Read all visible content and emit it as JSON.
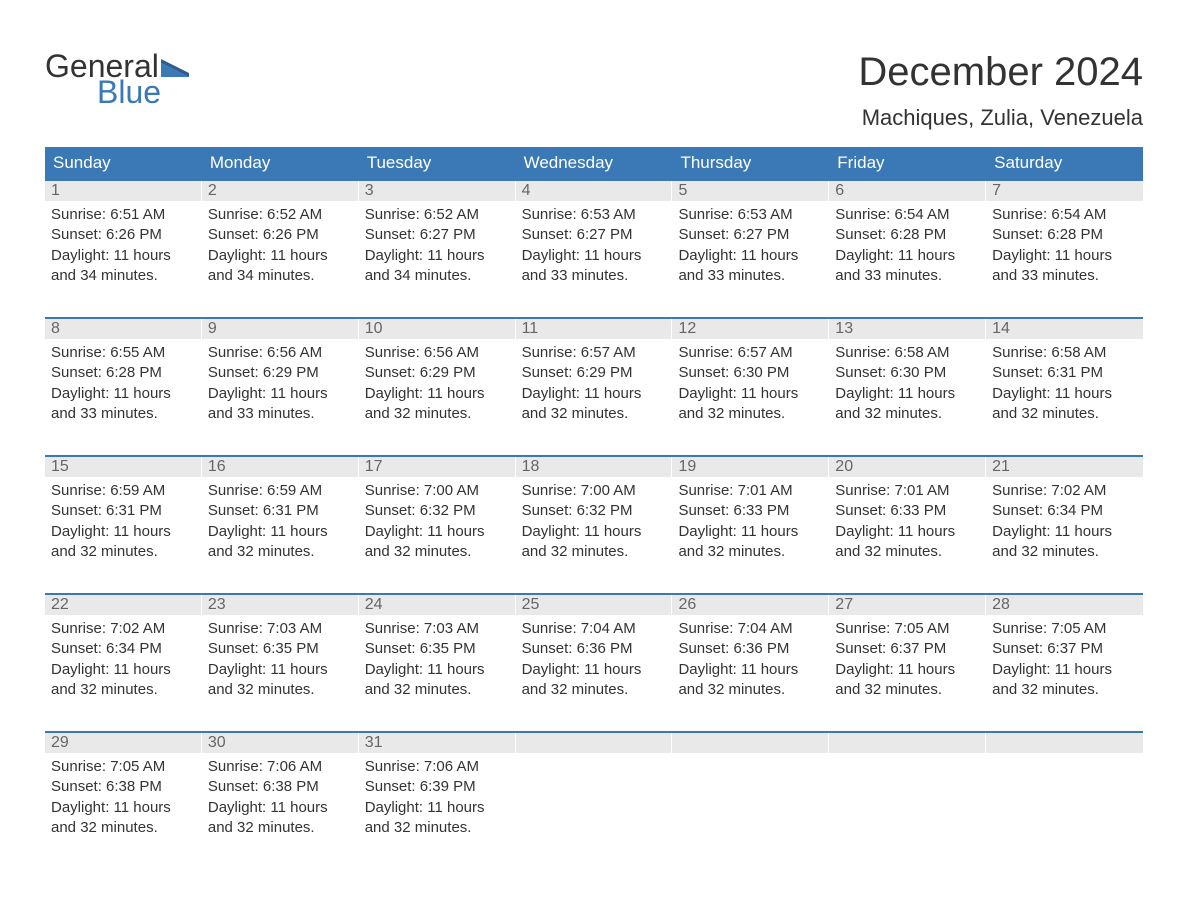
{
  "logo": {
    "general": "General",
    "blue": "Blue"
  },
  "title": "December 2024",
  "location": "Machiques, Zulia, Venezuela",
  "dayHeaders": [
    "Sunday",
    "Monday",
    "Tuesday",
    "Wednesday",
    "Thursday",
    "Friday",
    "Saturday"
  ],
  "labels": {
    "sunrise": "Sunrise:",
    "sunset": "Sunset:",
    "daylightPrefix": "Daylight:"
  },
  "colors": {
    "headerBg": "#3a78b6",
    "headerText": "#ffffff",
    "stripBg": "#e9e9e9",
    "dayNumText": "#666666",
    "bodyText": "#333333",
    "logoBlue": "#3a78b6",
    "background": "#ffffff",
    "weekBorder": "#3a78b6"
  },
  "typography": {
    "titleSize": 40,
    "locationSize": 22,
    "dayHeadSize": 17,
    "cellFontSize": 15,
    "logoFontSize": 32
  },
  "weeks": [
    [
      {
        "n": "1",
        "sr": "6:51 AM",
        "ss": "6:26 PM",
        "dl": "11 hours and 34 minutes."
      },
      {
        "n": "2",
        "sr": "6:52 AM",
        "ss": "6:26 PM",
        "dl": "11 hours and 34 minutes."
      },
      {
        "n": "3",
        "sr": "6:52 AM",
        "ss": "6:27 PM",
        "dl": "11 hours and 34 minutes."
      },
      {
        "n": "4",
        "sr": "6:53 AM",
        "ss": "6:27 PM",
        "dl": "11 hours and 33 minutes."
      },
      {
        "n": "5",
        "sr": "6:53 AM",
        "ss": "6:27 PM",
        "dl": "11 hours and 33 minutes."
      },
      {
        "n": "6",
        "sr": "6:54 AM",
        "ss": "6:28 PM",
        "dl": "11 hours and 33 minutes."
      },
      {
        "n": "7",
        "sr": "6:54 AM",
        "ss": "6:28 PM",
        "dl": "11 hours and 33 minutes."
      }
    ],
    [
      {
        "n": "8",
        "sr": "6:55 AM",
        "ss": "6:28 PM",
        "dl": "11 hours and 33 minutes."
      },
      {
        "n": "9",
        "sr": "6:56 AM",
        "ss": "6:29 PM",
        "dl": "11 hours and 33 minutes."
      },
      {
        "n": "10",
        "sr": "6:56 AM",
        "ss": "6:29 PM",
        "dl": "11 hours and 32 minutes."
      },
      {
        "n": "11",
        "sr": "6:57 AM",
        "ss": "6:29 PM",
        "dl": "11 hours and 32 minutes."
      },
      {
        "n": "12",
        "sr": "6:57 AM",
        "ss": "6:30 PM",
        "dl": "11 hours and 32 minutes."
      },
      {
        "n": "13",
        "sr": "6:58 AM",
        "ss": "6:30 PM",
        "dl": "11 hours and 32 minutes."
      },
      {
        "n": "14",
        "sr": "6:58 AM",
        "ss": "6:31 PM",
        "dl": "11 hours and 32 minutes."
      }
    ],
    [
      {
        "n": "15",
        "sr": "6:59 AM",
        "ss": "6:31 PM",
        "dl": "11 hours and 32 minutes."
      },
      {
        "n": "16",
        "sr": "6:59 AM",
        "ss": "6:31 PM",
        "dl": "11 hours and 32 minutes."
      },
      {
        "n": "17",
        "sr": "7:00 AM",
        "ss": "6:32 PM",
        "dl": "11 hours and 32 minutes."
      },
      {
        "n": "18",
        "sr": "7:00 AM",
        "ss": "6:32 PM",
        "dl": "11 hours and 32 minutes."
      },
      {
        "n": "19",
        "sr": "7:01 AM",
        "ss": "6:33 PM",
        "dl": "11 hours and 32 minutes."
      },
      {
        "n": "20",
        "sr": "7:01 AM",
        "ss": "6:33 PM",
        "dl": "11 hours and 32 minutes."
      },
      {
        "n": "21",
        "sr": "7:02 AM",
        "ss": "6:34 PM",
        "dl": "11 hours and 32 minutes."
      }
    ],
    [
      {
        "n": "22",
        "sr": "7:02 AM",
        "ss": "6:34 PM",
        "dl": "11 hours and 32 minutes."
      },
      {
        "n": "23",
        "sr": "7:03 AM",
        "ss": "6:35 PM",
        "dl": "11 hours and 32 minutes."
      },
      {
        "n": "24",
        "sr": "7:03 AM",
        "ss": "6:35 PM",
        "dl": "11 hours and 32 minutes."
      },
      {
        "n": "25",
        "sr": "7:04 AM",
        "ss": "6:36 PM",
        "dl": "11 hours and 32 minutes."
      },
      {
        "n": "26",
        "sr": "7:04 AM",
        "ss": "6:36 PM",
        "dl": "11 hours and 32 minutes."
      },
      {
        "n": "27",
        "sr": "7:05 AM",
        "ss": "6:37 PM",
        "dl": "11 hours and 32 minutes."
      },
      {
        "n": "28",
        "sr": "7:05 AM",
        "ss": "6:37 PM",
        "dl": "11 hours and 32 minutes."
      }
    ],
    [
      {
        "n": "29",
        "sr": "7:05 AM",
        "ss": "6:38 PM",
        "dl": "11 hours and 32 minutes."
      },
      {
        "n": "30",
        "sr": "7:06 AM",
        "ss": "6:38 PM",
        "dl": "11 hours and 32 minutes."
      },
      {
        "n": "31",
        "sr": "7:06 AM",
        "ss": "6:39 PM",
        "dl": "11 hours and 32 minutes."
      },
      null,
      null,
      null,
      null
    ]
  ]
}
